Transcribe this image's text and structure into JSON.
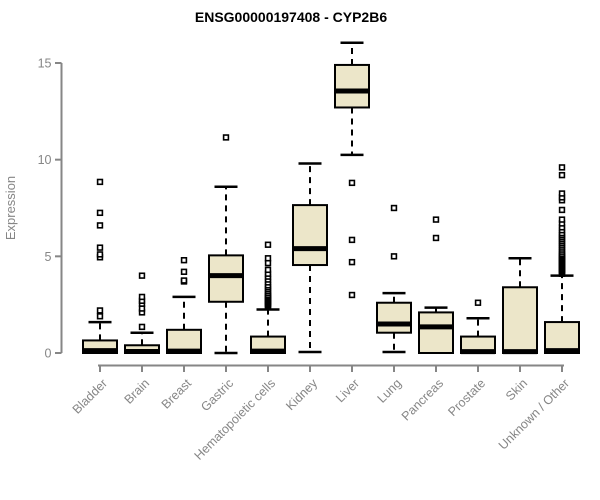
{
  "title": "ENSG00000197408 - CYP2B6",
  "chart_data": {
    "type": "boxplot",
    "title": "ENSG00000197408 - CYP2B6",
    "xlabel": "",
    "ylabel": "Expression",
    "ylim": [
      0,
      16.3
    ],
    "yticks": [
      0,
      5,
      10,
      15
    ],
    "grid": false,
    "legend": false,
    "categories": [
      "Bladder",
      "Brain",
      "Breast",
      "Gastric",
      "Hematopoietic cells",
      "Kidney",
      "Liver",
      "Lung",
      "Pancreas",
      "Prostate",
      "Skin",
      "Unknown / Other"
    ],
    "series": [
      {
        "name": "Bladder",
        "whisker_low": 0,
        "q1": 0,
        "median": 0.12,
        "q3": 0.65,
        "whisker_high": 1.6,
        "outliers": [
          1.9,
          2.2,
          4.95,
          5.1,
          5.45,
          6.6,
          7.25,
          8.85
        ]
      },
      {
        "name": "Brain",
        "whisker_low": 0,
        "q1": 0,
        "median": 0.08,
        "q3": 0.4,
        "whisker_high": 1.05,
        "outliers": [
          1.35,
          2.1,
          2.3,
          2.55,
          2.7,
          2.9,
          4.0
        ]
      },
      {
        "name": "Breast",
        "whisker_low": 0,
        "q1": 0,
        "median": 0.1,
        "q3": 1.2,
        "whisker_high": 2.9,
        "outliers": [
          3.7,
          3.75,
          4.2,
          4.8
        ]
      },
      {
        "name": "Gastric",
        "whisker_low": 0,
        "q1": 2.65,
        "median": 4.0,
        "q3": 5.05,
        "whisker_high": 8.6,
        "outliers": [
          11.15
        ]
      },
      {
        "name": "Hematopoietic cells",
        "whisker_low": 0,
        "q1": 0,
        "median": 0.1,
        "q3": 0.85,
        "whisker_high": 2.25,
        "outliers": [
          2.4,
          2.45,
          2.5,
          2.55,
          2.6,
          2.65,
          2.7,
          2.75,
          2.8,
          2.85,
          2.9,
          2.95,
          3.0,
          3.1,
          3.2,
          3.3,
          3.4,
          3.5,
          3.65,
          3.8,
          3.95,
          4.1,
          4.3,
          4.65,
          4.9,
          5.6
        ]
      },
      {
        "name": "Kidney",
        "whisker_low": 0.05,
        "q1": 4.55,
        "median": 5.4,
        "q3": 7.65,
        "whisker_high": 9.8,
        "outliers": []
      },
      {
        "name": "Liver",
        "whisker_low": 10.25,
        "q1": 12.7,
        "median": 13.55,
        "q3": 14.9,
        "whisker_high": 16.05,
        "outliers": [
          3.0,
          4.7,
          5.85,
          8.8
        ]
      },
      {
        "name": "Lung",
        "whisker_low": 0.05,
        "q1": 1.05,
        "median": 1.5,
        "q3": 2.6,
        "whisker_high": 3.1,
        "outliers": [
          5.0,
          7.5
        ]
      },
      {
        "name": "Pancreas",
        "whisker_low": 0,
        "q1": 0,
        "median": 1.35,
        "q3": 2.1,
        "whisker_high": 2.35,
        "outliers": [
          5.95,
          6.9
        ]
      },
      {
        "name": "Prostate",
        "whisker_low": 0,
        "q1": 0,
        "median": 0.07,
        "q3": 0.85,
        "whisker_high": 1.8,
        "outliers": [
          2.6
        ]
      },
      {
        "name": "Skin",
        "whisker_low": 0,
        "q1": 0,
        "median": 0.07,
        "q3": 3.4,
        "whisker_high": 4.9,
        "outliers": []
      },
      {
        "name": "Unknown / Other",
        "whisker_low": 0,
        "q1": 0,
        "median": 0.12,
        "q3": 1.6,
        "whisker_high": 4.0,
        "outliers": [
          4.1,
          4.15,
          4.2,
          4.25,
          4.3,
          4.35,
          4.4,
          4.45,
          4.5,
          4.55,
          4.6,
          4.65,
          4.7,
          4.75,
          4.8,
          4.85,
          4.9,
          4.95,
          5.0,
          5.05,
          5.1,
          5.2,
          5.3,
          5.4,
          5.5,
          5.6,
          5.7,
          5.8,
          5.9,
          6.0,
          6.1,
          6.2,
          6.35,
          6.5,
          6.7,
          6.9,
          7.4,
          7.9,
          8.05,
          8.25,
          9.2,
          9.6
        ]
      }
    ],
    "colors": {
      "box_fill": "#ece6c9",
      "box_border": "#000000",
      "median": "#000000",
      "whisker": "#000000",
      "outlier_border": "#000000",
      "outlier_fill": "#ffffff",
      "axis": "#868686",
      "title": "#000000",
      "background": "#ffffff"
    }
  }
}
